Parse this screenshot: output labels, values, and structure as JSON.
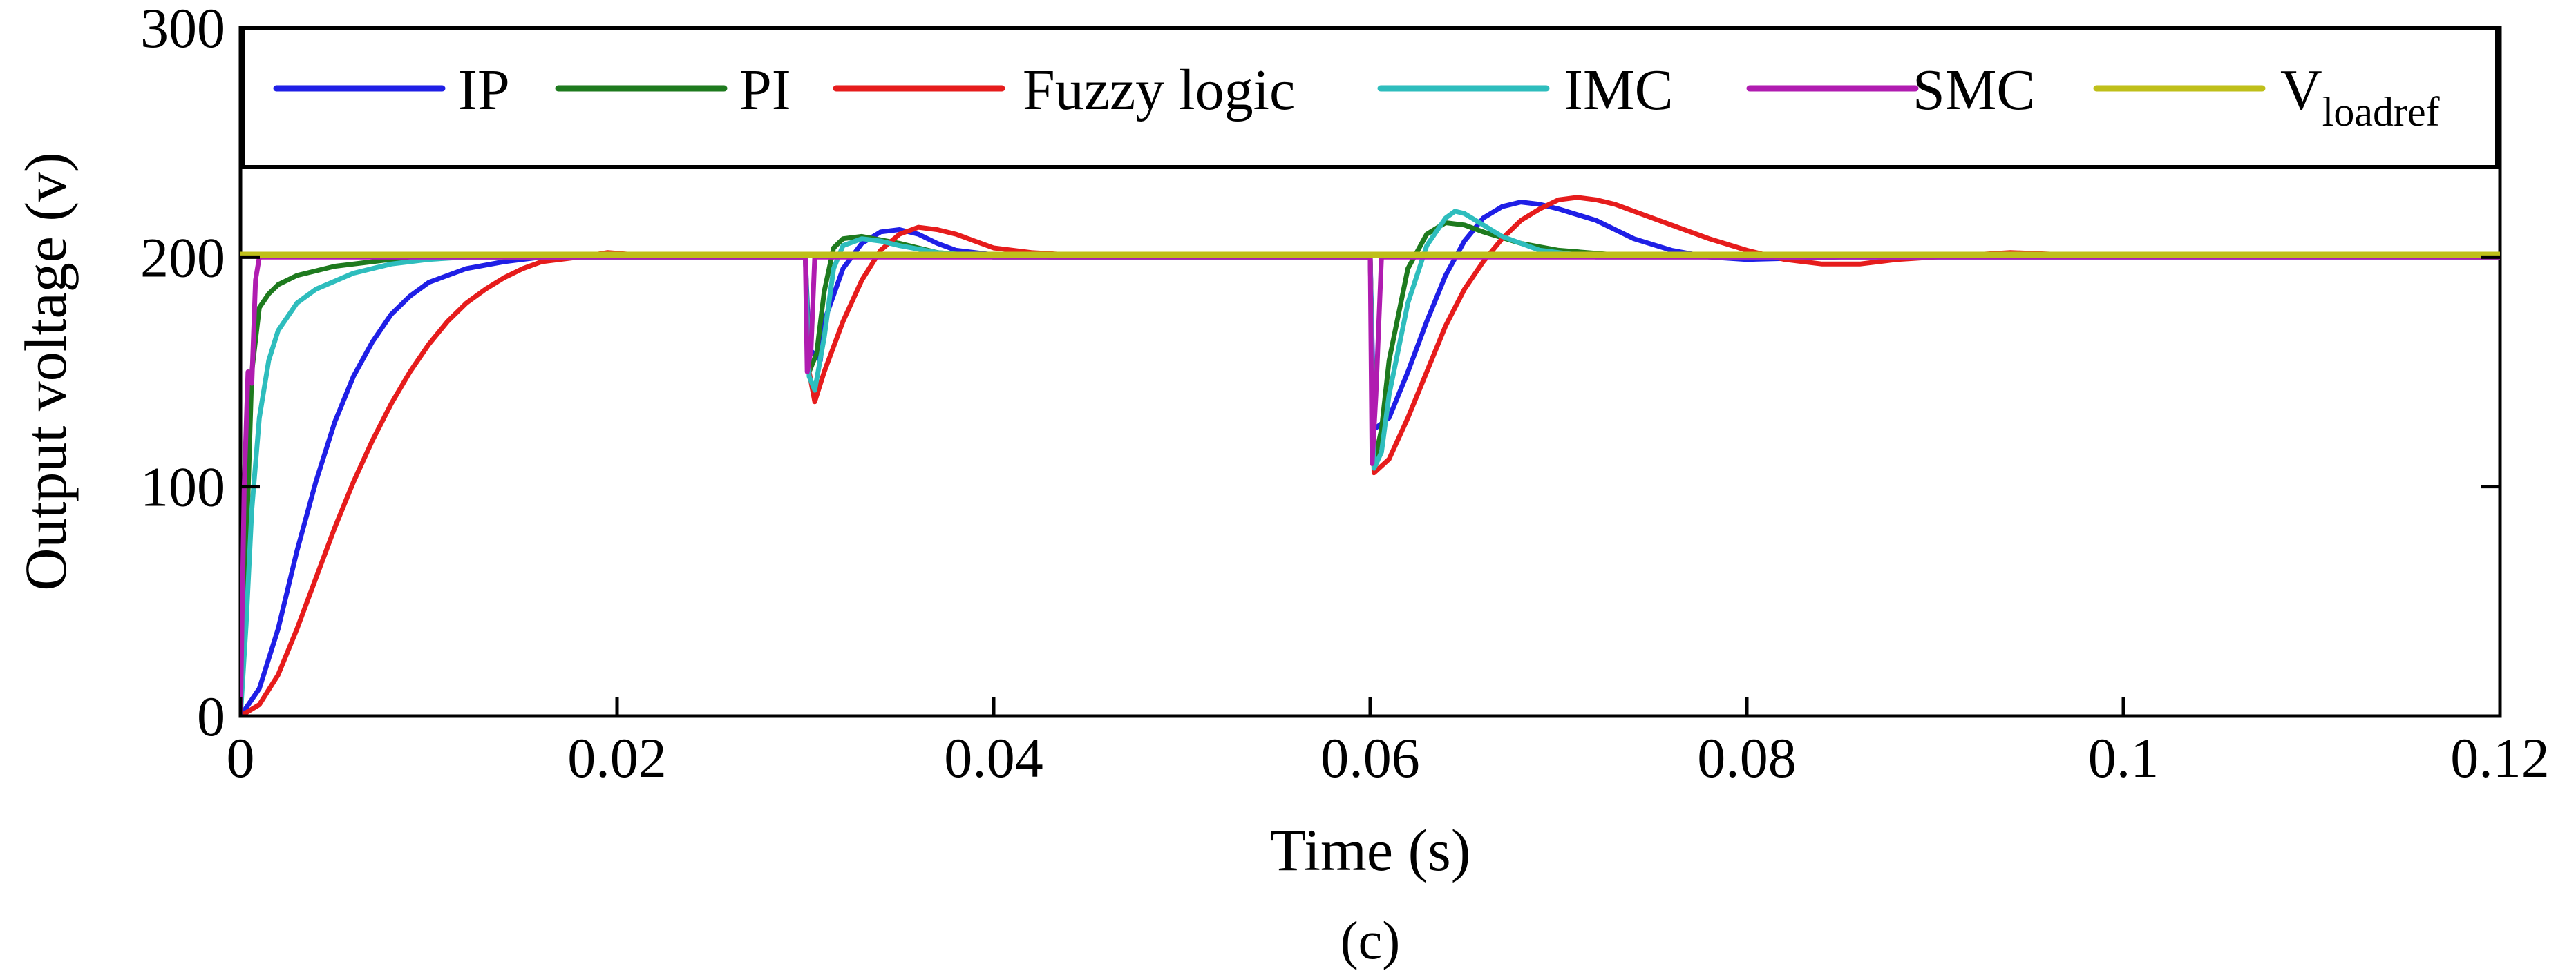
{
  "chart_data": {
    "type": "line",
    "title": "",
    "caption": "(c)",
    "xlabel": "Time (s)",
    "ylabel": "Output voltage (v)",
    "xlim": [
      0,
      0.12
    ],
    "ylim": [
      0,
      300
    ],
    "xticks": [
      0,
      0.02,
      0.04,
      0.06,
      0.08,
      0.1,
      0.12
    ],
    "xtick_labels": [
      "0",
      "0.02",
      "0.04",
      "0.06",
      "0.08",
      "0.1",
      "0.12"
    ],
    "yticks": [
      0,
      100,
      200,
      300
    ],
    "ytick_labels": [
      "0",
      "100",
      "200",
      "300"
    ],
    "legend_position": "top inside plot",
    "series": [
      {
        "name": "IP",
        "color": "#1f1fe6",
        "points": [
          [
            0,
            0
          ],
          [
            0.001,
            12
          ],
          [
            0.002,
            38
          ],
          [
            0.003,
            72
          ],
          [
            0.004,
            102
          ],
          [
            0.005,
            128
          ],
          [
            0.006,
            148
          ],
          [
            0.007,
            163
          ],
          [
            0.008,
            175
          ],
          [
            0.009,
            183
          ],
          [
            0.01,
            189
          ],
          [
            0.012,
            195
          ],
          [
            0.014,
            198
          ],
          [
            0.016,
            200
          ],
          [
            0.03,
            200
          ],
          [
            0.0302,
            160
          ],
          [
            0.0308,
            155
          ],
          [
            0.031,
            172
          ],
          [
            0.032,
            195
          ],
          [
            0.033,
            206
          ],
          [
            0.034,
            211
          ],
          [
            0.035,
            212
          ],
          [
            0.036,
            210
          ],
          [
            0.037,
            206
          ],
          [
            0.038,
            203
          ],
          [
            0.04,
            201
          ],
          [
            0.043,
            200
          ],
          [
            0.06,
            200
          ],
          [
            0.0602,
            125
          ],
          [
            0.061,
            130
          ],
          [
            0.062,
            150
          ],
          [
            0.063,
            172
          ],
          [
            0.064,
            192
          ],
          [
            0.065,
            207
          ],
          [
            0.066,
            217
          ],
          [
            0.067,
            222
          ],
          [
            0.068,
            224
          ],
          [
            0.069,
            223
          ],
          [
            0.07,
            221
          ],
          [
            0.072,
            216
          ],
          [
            0.074,
            208
          ],
          [
            0.076,
            203
          ],
          [
            0.078,
            200
          ],
          [
            0.08,
            199
          ],
          [
            0.085,
            200
          ],
          [
            0.12,
            200
          ]
        ]
      },
      {
        "name": "PI",
        "color": "#1e7a1e",
        "points": [
          [
            0,
            0
          ],
          [
            0.0003,
            70
          ],
          [
            0.0006,
            150
          ],
          [
            0.001,
            178
          ],
          [
            0.0015,
            184
          ],
          [
            0.002,
            188
          ],
          [
            0.003,
            192
          ],
          [
            0.005,
            196
          ],
          [
            0.008,
            199
          ],
          [
            0.01,
            200
          ],
          [
            0.03,
            200
          ],
          [
            0.0302,
            150
          ],
          [
            0.0306,
            158
          ],
          [
            0.031,
            185
          ],
          [
            0.0315,
            204
          ],
          [
            0.032,
            208
          ],
          [
            0.033,
            209
          ],
          [
            0.035,
            206
          ],
          [
            0.037,
            202
          ],
          [
            0.04,
            200
          ],
          [
            0.06,
            200
          ],
          [
            0.0602,
            110
          ],
          [
            0.0606,
            125
          ],
          [
            0.061,
            155
          ],
          [
            0.062,
            195
          ],
          [
            0.063,
            210
          ],
          [
            0.064,
            215
          ],
          [
            0.065,
            214
          ],
          [
            0.066,
            211
          ],
          [
            0.068,
            206
          ],
          [
            0.07,
            203
          ],
          [
            0.073,
            201
          ],
          [
            0.12,
            200
          ]
        ]
      },
      {
        "name": "Fuzzy logic",
        "color": "#e61c1c",
        "points": [
          [
            0,
            0
          ],
          [
            0.001,
            5
          ],
          [
            0.002,
            18
          ],
          [
            0.003,
            38
          ],
          [
            0.004,
            60
          ],
          [
            0.005,
            82
          ],
          [
            0.006,
            102
          ],
          [
            0.007,
            120
          ],
          [
            0.008,
            136
          ],
          [
            0.009,
            150
          ],
          [
            0.01,
            162
          ],
          [
            0.011,
            172
          ],
          [
            0.012,
            180
          ],
          [
            0.013,
            186
          ],
          [
            0.014,
            191
          ],
          [
            0.015,
            195
          ],
          [
            0.016,
            198
          ],
          [
            0.018,
            200
          ],
          [
            0.0195,
            202
          ],
          [
            0.021,
            201
          ],
          [
            0.03,
            200
          ],
          [
            0.0302,
            150
          ],
          [
            0.0305,
            137
          ],
          [
            0.031,
            150
          ],
          [
            0.032,
            172
          ],
          [
            0.033,
            190
          ],
          [
            0.034,
            203
          ],
          [
            0.035,
            210
          ],
          [
            0.036,
            213
          ],
          [
            0.037,
            212
          ],
          [
            0.038,
            210
          ],
          [
            0.039,
            207
          ],
          [
            0.04,
            204
          ],
          [
            0.042,
            202
          ],
          [
            0.044,
            201
          ],
          [
            0.06,
            200
          ],
          [
            0.0602,
            106
          ],
          [
            0.061,
            112
          ],
          [
            0.062,
            130
          ],
          [
            0.063,
            150
          ],
          [
            0.064,
            170
          ],
          [
            0.065,
            186
          ],
          [
            0.066,
            198
          ],
          [
            0.067,
            208
          ],
          [
            0.068,
            216
          ],
          [
            0.069,
            221
          ],
          [
            0.07,
            225
          ],
          [
            0.071,
            226
          ],
          [
            0.072,
            225
          ],
          [
            0.073,
            223
          ],
          [
            0.074,
            220
          ],
          [
            0.076,
            214
          ],
          [
            0.078,
            208
          ],
          [
            0.08,
            203
          ],
          [
            0.082,
            199
          ],
          [
            0.084,
            197
          ],
          [
            0.086,
            197
          ],
          [
            0.088,
            199
          ],
          [
            0.09,
            200
          ],
          [
            0.094,
            202
          ],
          [
            0.097,
            201
          ],
          [
            0.12,
            200
          ]
        ]
      },
      {
        "name": "IMC",
        "color": "#2ebdbd",
        "points": [
          [
            0,
            0
          ],
          [
            0.0003,
            40
          ],
          [
            0.0006,
            90
          ],
          [
            0.001,
            130
          ],
          [
            0.0015,
            155
          ],
          [
            0.002,
            168
          ],
          [
            0.003,
            180
          ],
          [
            0.004,
            186
          ],
          [
            0.006,
            193
          ],
          [
            0.008,
            197
          ],
          [
            0.01,
            199
          ],
          [
            0.012,
            200
          ],
          [
            0.03,
            200
          ],
          [
            0.0302,
            148
          ],
          [
            0.0305,
            142
          ],
          [
            0.031,
            165
          ],
          [
            0.0315,
            195
          ],
          [
            0.032,
            205
          ],
          [
            0.033,
            208
          ],
          [
            0.034,
            207
          ],
          [
            0.035,
            205
          ],
          [
            0.037,
            202
          ],
          [
            0.04,
            200
          ],
          [
            0.06,
            200
          ],
          [
            0.0602,
            108
          ],
          [
            0.0606,
            115
          ],
          [
            0.061,
            140
          ],
          [
            0.062,
            180
          ],
          [
            0.063,
            205
          ],
          [
            0.064,
            217
          ],
          [
            0.0645,
            220
          ],
          [
            0.065,
            219
          ],
          [
            0.066,
            214
          ],
          [
            0.067,
            209
          ],
          [
            0.069,
            203
          ],
          [
            0.072,
            200
          ],
          [
            0.12,
            200
          ]
        ]
      },
      {
        "name": "SMC",
        "color": "#b01cb0",
        "points": [
          [
            0,
            0
          ],
          [
            0.0002,
            100
          ],
          [
            0.0004,
            150
          ],
          [
            0.0006,
            145
          ],
          [
            0.0008,
            190
          ],
          [
            0.001,
            200
          ],
          [
            0.03,
            200
          ],
          [
            0.0301,
            150
          ],
          [
            0.0303,
            160
          ],
          [
            0.0305,
            200
          ],
          [
            0.06,
            200
          ],
          [
            0.0601,
            110
          ],
          [
            0.0603,
            140
          ],
          [
            0.0606,
            200
          ],
          [
            0.12,
            200
          ]
        ]
      },
      {
        "name": "Vloadref",
        "name_main": "V",
        "name_sub": "loadref",
        "color": "#bfbf1a",
        "points": [
          [
            0,
            201
          ],
          [
            0.12,
            201
          ]
        ]
      }
    ]
  }
}
